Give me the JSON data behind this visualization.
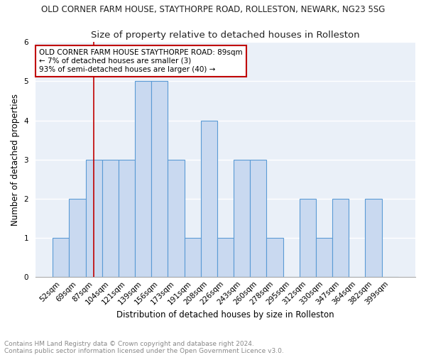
{
  "title": "OLD CORNER FARM HOUSE, STAYTHORPE ROAD, ROLLESTON, NEWARK, NG23 5SG",
  "subtitle": "Size of property relative to detached houses in Rolleston",
  "xlabel": "Distribution of detached houses by size in Rolleston",
  "ylabel": "Number of detached properties",
  "categories": [
    "52sqm",
    "69sqm",
    "87sqm",
    "104sqm",
    "121sqm",
    "139sqm",
    "156sqm",
    "173sqm",
    "191sqm",
    "208sqm",
    "226sqm",
    "243sqm",
    "260sqm",
    "278sqm",
    "295sqm",
    "312sqm",
    "330sqm",
    "347sqm",
    "364sqm",
    "382sqm",
    "399sqm"
  ],
  "values": [
    1,
    2,
    3,
    3,
    3,
    5,
    5,
    3,
    1,
    4,
    1,
    3,
    3,
    1,
    0,
    2,
    1,
    2,
    0,
    2,
    0
  ],
  "bar_color": "#c9d9f0",
  "bar_edge_color": "#5b9bd5",
  "vline_x_index": 2,
  "vline_color": "#c00000",
  "annotation_line1": "OLD CORNER FARM HOUSE STAYTHORPE ROAD: 89sqm",
  "annotation_line2": "← 7% of detached houses are smaller (3)",
  "annotation_line3": "93% of semi-detached houses are larger (40) →",
  "annotation_box_color": "#ffffff",
  "annotation_box_edge": "#c00000",
  "ylim": [
    0,
    6
  ],
  "yticks": [
    0,
    1,
    2,
    3,
    4,
    5,
    6
  ],
  "footer_line1": "Contains HM Land Registry data © Crown copyright and database right 2024.",
  "footer_line2": "Contains public sector information licensed under the Open Government Licence v3.0.",
  "bg_color": "#eaf0f8",
  "grid_color": "#ffffff",
  "title_fontsize": 8.5,
  "subtitle_fontsize": 9.5,
  "xlabel_fontsize": 8.5,
  "ylabel_fontsize": 8.5,
  "tick_fontsize": 7.5,
  "footer_fontsize": 6.5,
  "annotation_fontsize": 7.5
}
